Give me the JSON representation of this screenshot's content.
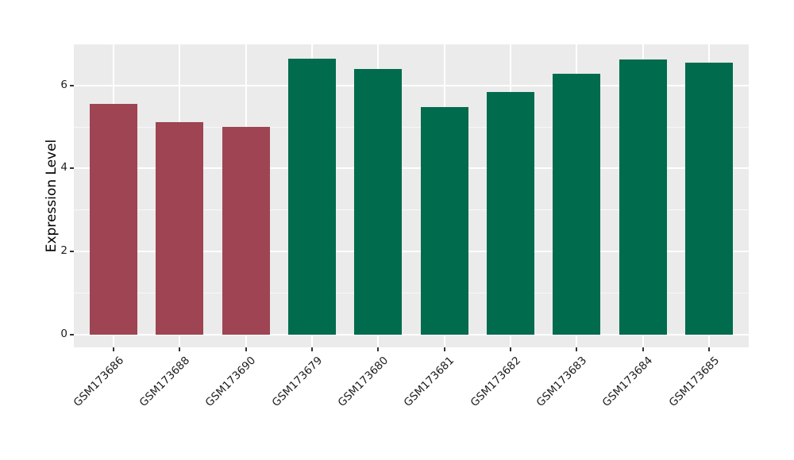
{
  "figure": {
    "background": "#ffffff",
    "panel_background": "#ebebeb",
    "gridline_color": "#ffffff",
    "tick_color": "#333333",
    "text_color": "#1c1c1c"
  },
  "chart_data": {
    "type": "bar",
    "title": "",
    "xlabel": "",
    "ylabel": "Expression Level",
    "categories": [
      "GSM173686",
      "GSM173688",
      "GSM173690",
      "GSM173679",
      "GSM173680",
      "GSM173681",
      "GSM173682",
      "GSM173683",
      "GSM173684",
      "GSM173685"
    ],
    "values": [
      5.55,
      5.12,
      5.0,
      6.65,
      6.4,
      5.48,
      5.85,
      6.28,
      6.62,
      6.56
    ],
    "bar_colors": [
      "#9e4452",
      "#9e4452",
      "#9e4452",
      "#006b4d",
      "#006b4d",
      "#006b4d",
      "#006b4d",
      "#006b4d",
      "#006b4d",
      "#006b4d"
    ],
    "color_groups": {
      "maroon": "#9e4452",
      "green": "#006b4d"
    },
    "yticks": [
      0,
      2,
      4,
      6
    ],
    "yticks_minor": [
      1,
      3,
      5,
      7
    ],
    "ylim": [
      -0.31,
      6.99
    ],
    "x_tick_angle_deg": 45,
    "grid": "white major+minor horizontal, white vertical at category centers",
    "legend": null
  }
}
